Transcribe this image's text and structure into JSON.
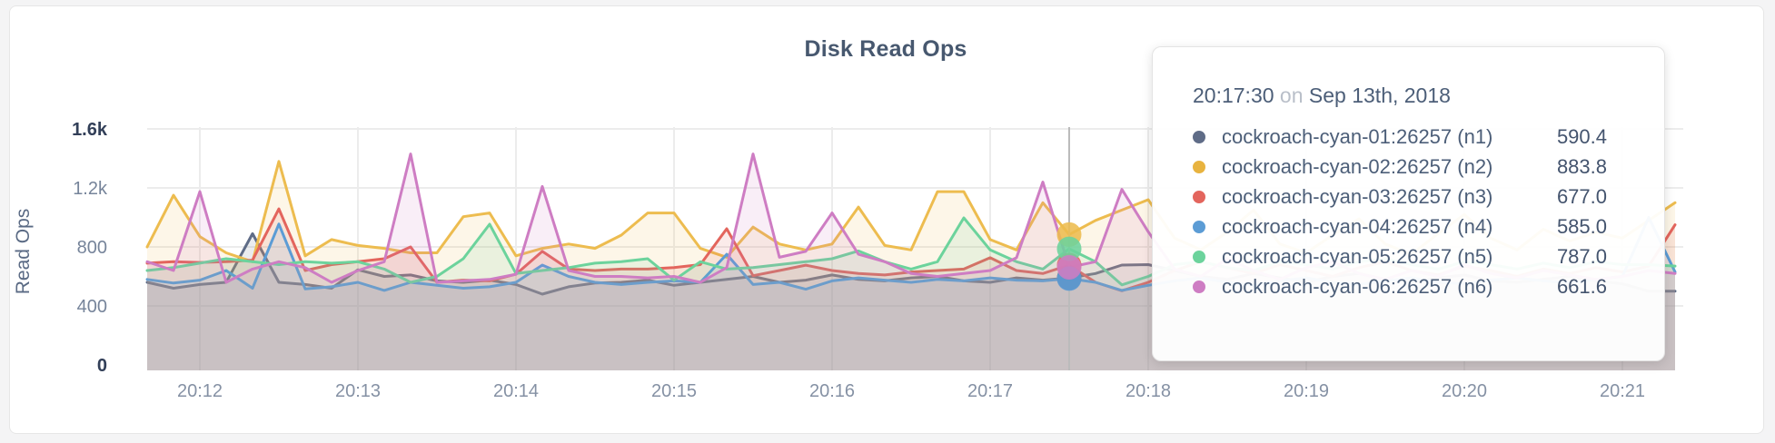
{
  "card": {
    "title": "Disk Read Ops"
  },
  "chart_data": {
    "type": "area",
    "title": "Disk Read Ops",
    "xlabel": "",
    "ylabel": "Read Ops",
    "ylim": [
      0,
      1600
    ],
    "grid": true,
    "legend_position": "tooltip-overlay",
    "x_start": "20:11:40",
    "x_interval_seconds": 10,
    "x_ticks": [
      "20:12",
      "20:13",
      "20:14",
      "20:15",
      "20:16",
      "20:17",
      "20:18",
      "20:19",
      "20:20",
      "20:21"
    ],
    "y_ticks": [
      {
        "value": 0,
        "label": "0",
        "strong": true
      },
      {
        "value": 400,
        "label": "400",
        "strong": false
      },
      {
        "value": 800,
        "label": "800",
        "strong": false
      },
      {
        "value": 1200,
        "label": "1.2k",
        "strong": false
      },
      {
        "value": 1600,
        "label": "1.6k",
        "strong": true
      }
    ],
    "hover_index": 35,
    "hover_time": "20:17:30",
    "series": [
      {
        "id": "n1",
        "name": "cockroach-cyan-01:26257 (n1)",
        "color": "#5F6C87",
        "values": [
          560,
          520,
          545,
          560,
          890,
          560,
          545,
          520,
          645,
          600,
          610,
          570,
          560,
          575,
          545,
          480,
          530,
          555,
          560,
          575,
          540,
          560,
          580,
          600,
          560,
          575,
          610,
          580,
          570,
          590,
          600,
          570,
          560,
          590,
          575,
          590.4,
          620,
          677,
          680,
          640,
          600,
          580,
          620,
          590,
          560,
          600,
          620,
          580,
          560,
          590,
          610,
          570,
          560,
          580,
          600,
          570,
          550,
          500,
          500
        ]
      },
      {
        "id": "n2",
        "name": "cockroach-cyan-02:26257 (n2)",
        "color": "#EDBC4F",
        "values": [
          800,
          1150,
          870,
          760,
          700,
          1380,
          740,
          850,
          810,
          790,
          760,
          760,
          1005,
          1030,
          740,
          790,
          820,
          790,
          880,
          1030,
          1030,
          790,
          730,
          935,
          820,
          780,
          820,
          1070,
          810,
          780,
          1175,
          1175,
          850,
          780,
          1100,
          883.8,
          980,
          1050,
          1120,
          860,
          780,
          900,
          1050,
          820,
          760,
          880,
          990,
          820,
          750,
          890,
          1020,
          860,
          780,
          920,
          840,
          900,
          860,
          980,
          1100
        ]
      },
      {
        "id": "n3",
        "name": "cockroach-cyan-03:26257 (n3)",
        "color": "#E3655D",
        "values": [
          690,
          700,
          695,
          700,
          710,
          1058,
          640,
          680,
          700,
          720,
          800,
          560,
          575,
          570,
          615,
          770,
          650,
          640,
          650,
          650,
          660,
          680,
          923,
          605,
          640,
          676,
          640,
          620,
          610,
          630,
          640,
          650,
          727,
          640,
          620,
          677,
          560,
          503,
          560,
          640,
          700,
          660,
          620,
          680,
          640,
          600,
          660,
          700,
          640,
          610,
          670,
          640,
          600,
          650,
          620,
          660,
          630,
          670,
          950
        ]
      },
      {
        "id": "n4",
        "name": "cockroach-cyan-04:26257 (n4)",
        "color": "#5C9CD5",
        "values": [
          580,
          555,
          575,
          640,
          520,
          955,
          515,
          530,
          560,
          505,
          560,
          540,
          520,
          530,
          560,
          677,
          600,
          560,
          545,
          560,
          570,
          560,
          750,
          545,
          560,
          513,
          570,
          590,
          575,
          560,
          580,
          570,
          590,
          575,
          570,
          585,
          560,
          505,
          540,
          570,
          590,
          560,
          540,
          570,
          590,
          560,
          545,
          570,
          590,
          560,
          550,
          575,
          590,
          570,
          555,
          580,
          600,
          1000,
          630
        ]
      },
      {
        "id": "n5",
        "name": "cockroach-cyan-05:26257 (n5)",
        "color": "#6CD39C",
        "values": [
          640,
          660,
          690,
          720,
          700,
          680,
          700,
          690,
          700,
          650,
          560,
          600,
          720,
          954,
          620,
          640,
          660,
          690,
          700,
          720,
          574,
          700,
          650,
          660,
          680,
          700,
          720,
          773,
          700,
          650,
          700,
          997,
          780,
          700,
          650,
          787,
          700,
          543,
          600,
          680,
          700,
          660,
          640,
          700,
          680,
          650,
          700,
          720,
          680,
          650,
          700,
          680,
          650,
          690,
          660,
          700,
          680,
          680,
          670
        ]
      },
      {
        "id": "n6",
        "name": "cockroach-cyan-06:26257 (n6)",
        "color": "#CE7DC3",
        "values": [
          700,
          640,
          1175,
          560,
          650,
          700,
          660,
          560,
          640,
          700,
          1430,
          560,
          570,
          580,
          615,
          1210,
          640,
          600,
          600,
          590,
          600,
          560,
          660,
          1430,
          730,
          770,
          1030,
          750,
          700,
          620,
          600,
          620,
          640,
          727,
          1240,
          661.6,
          700,
          1190,
          903,
          650,
          600,
          720,
          640,
          580,
          660,
          700,
          620,
          580,
          640,
          600,
          680,
          620,
          590,
          640,
          610,
          580,
          600,
          640,
          620
        ]
      }
    ]
  },
  "tooltip": {
    "time": "20:17:30",
    "preposition": "on",
    "date": "Sep 13th, 2018",
    "rows": [
      {
        "label": "cockroach-cyan-01:26257 (n1)",
        "value": "590.4",
        "color": "#5F6C87"
      },
      {
        "label": "cockroach-cyan-02:26257 (n2)",
        "value": "883.8",
        "color": "#E8B33F"
      },
      {
        "label": "cockroach-cyan-03:26257 (n3)",
        "value": "677.0",
        "color": "#E3655D"
      },
      {
        "label": "cockroach-cyan-04:26257 (n4)",
        "value": "585.0",
        "color": "#5C9CD5"
      },
      {
        "label": "cockroach-cyan-05:26257 (n5)",
        "value": "787.0",
        "color": "#6CD39C"
      },
      {
        "label": "cockroach-cyan-06:26257 (n6)",
        "value": "661.6",
        "color": "#CE7DC3"
      }
    ]
  }
}
